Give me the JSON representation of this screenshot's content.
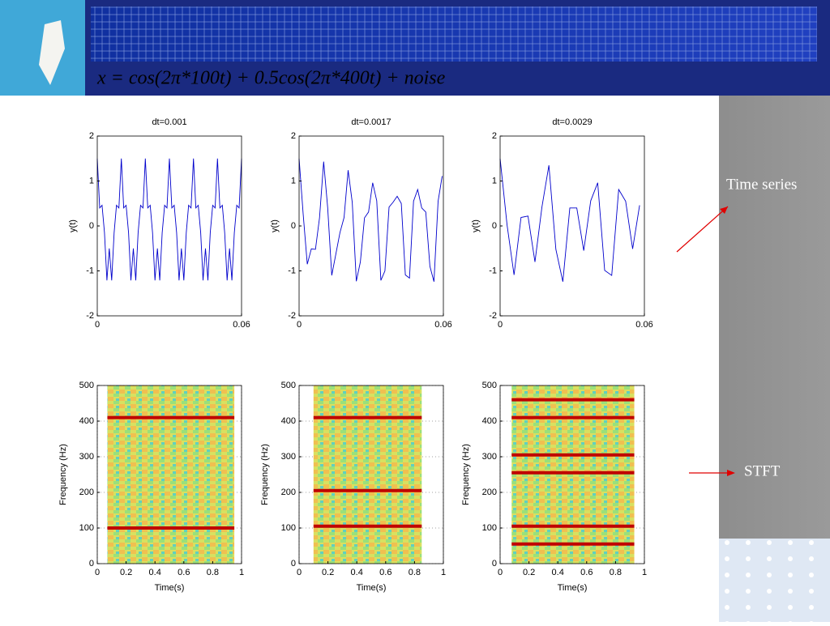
{
  "slide": {
    "formula": "x = cos(2π*100t) + 0.5cos(2π*400t) + noise",
    "labels": [
      "Time series",
      "STFT"
    ]
  },
  "chart_data": [
    {
      "type": "line",
      "title": "dt=0.001",
      "ylabel": "y(t)",
      "xlim": [
        0,
        0.06
      ],
      "ylim": [
        -2,
        2
      ],
      "xticks": [
        0,
        0.06
      ],
      "yticks": [
        -2,
        -1,
        0,
        1,
        2
      ],
      "color": "#0000cc",
      "x": [
        0,
        0.001,
        0.002,
        0.003,
        0.004,
        0.005,
        0.006,
        0.007,
        0.008,
        0.009,
        0.01,
        0.011,
        0.012,
        0.013,
        0.014,
        0.015,
        0.016,
        0.017,
        0.018,
        0.019,
        0.02,
        0.021,
        0.022,
        0.023,
        0.024,
        0.025,
        0.026,
        0.027,
        0.028,
        0.029,
        0.03,
        0.031,
        0.032,
        0.033,
        0.034,
        0.035,
        0.036,
        0.037,
        0.038,
        0.039,
        0.04,
        0.041,
        0.042,
        0.043,
        0.044,
        0.045,
        0.046,
        0.047,
        0.048,
        0.049,
        0.05,
        0.051,
        0.052,
        0.053,
        0.054,
        0.055,
        0.056,
        0.057,
        0.058,
        0.059,
        0.06
      ],
      "values": [
        1.5,
        0.4,
        0.46,
        -0.15,
        -1.21,
        -0.5,
        -1.21,
        -0.15,
        0.46,
        0.4,
        1.5,
        0.4,
        0.46,
        -0.15,
        -1.21,
        -0.5,
        -1.21,
        -0.15,
        0.46,
        0.4,
        1.5,
        0.4,
        0.46,
        -0.15,
        -1.21,
        -0.5,
        -1.21,
        -0.15,
        0.46,
        0.4,
        1.5,
        0.4,
        0.46,
        -0.15,
        -1.21,
        -0.5,
        -1.21,
        -0.15,
        0.46,
        0.4,
        1.5,
        0.4,
        0.46,
        -0.15,
        -1.21,
        -0.5,
        -1.21,
        -0.15,
        0.46,
        0.4,
        1.5,
        0.4,
        0.46,
        -0.15,
        -1.21,
        -0.5,
        -1.21,
        -0.15,
        0.46,
        0.4,
        1.5
      ]
    },
    {
      "type": "line",
      "title": "dt=0.0017",
      "ylabel": "y(t)",
      "xlim": [
        0,
        0.06
      ],
      "ylim": [
        -2,
        2
      ],
      "xticks": [
        0,
        0.06
      ],
      "yticks": [
        -2,
        -1,
        0,
        1,
        2
      ],
      "color": "#0000cc",
      "x": [
        0,
        0.0017,
        0.0034,
        0.0051,
        0.0068,
        0.0085,
        0.0102,
        0.0119,
        0.0136,
        0.0153,
        0.017,
        0.0187,
        0.0204,
        0.0221,
        0.0238,
        0.0255,
        0.0272,
        0.0289,
        0.0306,
        0.0323,
        0.034,
        0.0357,
        0.0374,
        0.0391,
        0.0408,
        0.0425,
        0.0442,
        0.0459,
        0.0476,
        0.0493,
        0.051,
        0.0527,
        0.0544,
        0.0561,
        0.0578,
        0.0595
      ],
      "values": [
        1.5,
        0.27,
        -0.85,
        -0.51,
        -0.52,
        0.18,
        1.43,
        0.4,
        -1.1,
        -0.62,
        -0.15,
        0.19,
        1.24,
        0.52,
        -1.23,
        -0.8,
        0.18,
        0.31,
        0.96,
        0.56,
        -1.21,
        -1.0,
        0.42,
        0.53,
        0.66,
        0.5,
        -1.09,
        -1.16,
        0.55,
        0.81,
        0.4,
        0.31,
        -0.9,
        -1.24,
        0.55,
        1.11
      ]
    },
    {
      "type": "line",
      "title": "dt=0.0029",
      "ylabel": "y(t)",
      "xlim": [
        0,
        0.06
      ],
      "ylim": [
        -2,
        2
      ],
      "xticks": [
        0,
        0.06
      ],
      "yticks": [
        -2,
        -1,
        0,
        1,
        2
      ],
      "color": "#0000cc",
      "x": [
        0,
        0.0029,
        0.0058,
        0.0087,
        0.0116,
        0.0145,
        0.0174,
        0.0203,
        0.0232,
        0.0261,
        0.029,
        0.0319,
        0.0348,
        0.0377,
        0.0406,
        0.0435,
        0.0464,
        0.0493,
        0.0522,
        0.0551,
        0.058
      ],
      "values": [
        1.5,
        0.02,
        -1.09,
        0.19,
        0.22,
        -0.8,
        0.42,
        1.35,
        -0.52,
        -1.24,
        0.4,
        0.4,
        -0.55,
        0.56,
        0.96,
        -0.99,
        -1.1,
        0.81,
        0.55,
        -0.51,
        0.46
      ]
    },
    {
      "type": "spectrogram",
      "xlabel": "Time(s)",
      "ylabel": "Frequency (Hz)",
      "xlim": [
        0,
        1
      ],
      "ylim": [
        0,
        500
      ],
      "xticks": [
        0,
        0.2,
        0.4,
        0.6,
        0.8,
        1
      ],
      "yticks": [
        0,
        100,
        200,
        300,
        400,
        500
      ],
      "grid": true,
      "time_range": [
        0.07,
        0.95
      ],
      "peaks": [
        100,
        410
      ],
      "color": "#c00000"
    },
    {
      "type": "spectrogram",
      "xlabel": "Time(s)",
      "ylabel": "Frequency (Hz)",
      "xlim": [
        0,
        1
      ],
      "ylim": [
        0,
        500
      ],
      "xticks": [
        0,
        0.2,
        0.4,
        0.6,
        0.8,
        1
      ],
      "yticks": [
        0,
        100,
        200,
        300,
        400,
        500
      ],
      "grid": true,
      "time_range": [
        0.1,
        0.85
      ],
      "peaks": [
        105,
        205,
        410
      ],
      "color": "#c00000"
    },
    {
      "type": "spectrogram",
      "xlabel": "Time(s)",
      "ylabel": "Frequency (Hz)",
      "xlim": [
        0,
        1
      ],
      "ylim": [
        0,
        500
      ],
      "xticks": [
        0,
        0.2,
        0.4,
        0.6,
        0.8,
        1
      ],
      "yticks": [
        0,
        100,
        200,
        300,
        400,
        500
      ],
      "grid": true,
      "time_range": [
        0.08,
        0.93
      ],
      "peaks": [
        55,
        105,
        255,
        305,
        410,
        460
      ],
      "color": "#c00000"
    }
  ]
}
